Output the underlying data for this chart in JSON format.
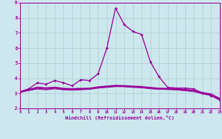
{
  "xlabel": "Windchill (Refroidissement éolien,°C)",
  "background_color": "#cce8ee",
  "line_color": "#990099",
  "grid_color": "#aacccc",
  "xlim": [
    0,
    23
  ],
  "ylim": [
    2,
    9
  ],
  "xticks": [
    0,
    1,
    2,
    3,
    4,
    5,
    6,
    7,
    8,
    9,
    10,
    11,
    12,
    13,
    14,
    15,
    16,
    17,
    18,
    19,
    20,
    21,
    22,
    23
  ],
  "yticks": [
    2,
    3,
    4,
    5,
    6,
    7,
    8,
    9
  ],
  "series": [
    {
      "x": [
        0,
        1,
        2,
        3,
        4,
        5,
        6,
        7,
        8,
        9,
        10,
        11,
        12,
        13,
        14,
        15,
        16,
        17,
        18,
        19,
        20,
        21,
        22,
        23
      ],
      "y": [
        3.1,
        3.3,
        3.7,
        3.6,
        3.85,
        3.7,
        3.5,
        3.9,
        3.85,
        4.3,
        6.0,
        8.65,
        7.55,
        7.1,
        6.9,
        5.1,
        4.1,
        3.4,
        3.35,
        3.35,
        3.3,
        3.0,
        2.85,
        2.55
      ],
      "marker": "D",
      "markersize": 1.8,
      "linewidth": 1.0
    },
    {
      "x": [
        0,
        1,
        2,
        3,
        4,
        5,
        6,
        7,
        8,
        9,
        10,
        11,
        12,
        13,
        14,
        15,
        16,
        17,
        18,
        19,
        20,
        21,
        22,
        23
      ],
      "y": [
        3.1,
        3.25,
        3.4,
        3.35,
        3.4,
        3.32,
        3.3,
        3.32,
        3.33,
        3.42,
        3.47,
        3.52,
        3.5,
        3.47,
        3.44,
        3.38,
        3.33,
        3.32,
        3.3,
        3.25,
        3.2,
        3.05,
        2.95,
        2.65
      ],
      "marker": null,
      "linewidth": 1.3
    },
    {
      "x": [
        0,
        1,
        2,
        3,
        4,
        5,
        6,
        7,
        8,
        9,
        10,
        11,
        12,
        13,
        14,
        15,
        16,
        17,
        18,
        19,
        20,
        21,
        22,
        23
      ],
      "y": [
        3.08,
        3.22,
        3.33,
        3.28,
        3.34,
        3.27,
        3.25,
        3.28,
        3.3,
        3.38,
        3.43,
        3.48,
        3.47,
        3.43,
        3.4,
        3.34,
        3.3,
        3.28,
        3.26,
        3.21,
        3.15,
        3.0,
        2.9,
        2.6
      ],
      "marker": null,
      "linewidth": 0.9
    },
    {
      "x": [
        0,
        1,
        2,
        3,
        4,
        5,
        6,
        7,
        8,
        9,
        10,
        11,
        12,
        13,
        14,
        15,
        16,
        17,
        18,
        19,
        20,
        21,
        22,
        23
      ],
      "y": [
        3.05,
        3.18,
        3.28,
        3.23,
        3.29,
        3.23,
        3.2,
        3.23,
        3.26,
        3.34,
        3.39,
        3.44,
        3.43,
        3.39,
        3.36,
        3.3,
        3.26,
        3.25,
        3.22,
        3.17,
        3.11,
        2.96,
        2.86,
        2.56
      ],
      "marker": null,
      "linewidth": 0.7
    }
  ]
}
